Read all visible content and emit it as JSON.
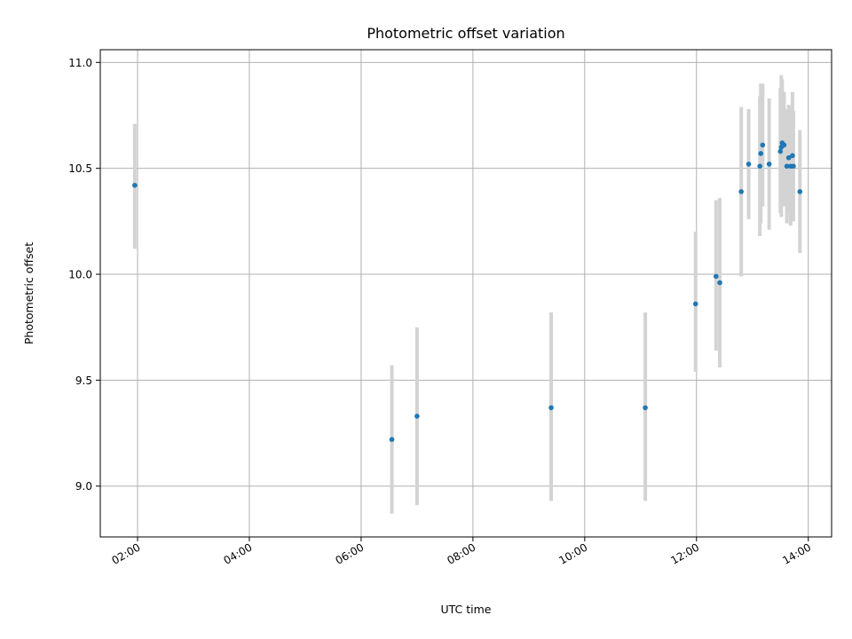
{
  "chart_data": {
    "type": "scatter",
    "title": "Photometric offset variation",
    "xlabel": "UTC time",
    "ylabel": "Photometric offset",
    "x_axis": "time",
    "xlim": [
      "01:20",
      "14:25"
    ],
    "ylim": [
      8.76,
      11.06
    ],
    "xticks": [
      "02:00",
      "04:00",
      "06:00",
      "08:00",
      "10:00",
      "12:00",
      "14:00"
    ],
    "yticks": [
      9.0,
      9.5,
      10.0,
      10.5,
      11.0
    ],
    "yticks_labels": [
      "9.0",
      "9.5",
      "10.0",
      "10.5",
      "11.0"
    ],
    "grid": true,
    "colors": {
      "points": "#1f77b4",
      "error_bars": "#d3d3d3",
      "grid": "#b0b0b0"
    },
    "points": [
      {
        "x": "01:57",
        "y": 10.42,
        "lo": 10.12,
        "hi": 10.71
      },
      {
        "x": "06:33",
        "y": 9.22,
        "lo": 8.87,
        "hi": 9.57
      },
      {
        "x": "07:00",
        "y": 9.33,
        "lo": 8.91,
        "hi": 9.75
      },
      {
        "x": "09:24",
        "y": 9.37,
        "lo": 8.93,
        "hi": 9.82
      },
      {
        "x": "11:05",
        "y": 9.37,
        "lo": 8.93,
        "hi": 9.82
      },
      {
        "x": "11:59",
        "y": 9.86,
        "lo": 9.54,
        "hi": 10.2
      },
      {
        "x": "12:21",
        "y": 9.99,
        "lo": 9.64,
        "hi": 10.35
      },
      {
        "x": "12:25",
        "y": 9.96,
        "lo": 9.56,
        "hi": 10.36
      },
      {
        "x": "12:48",
        "y": 10.39,
        "lo": 9.99,
        "hi": 10.79
      },
      {
        "x": "12:56",
        "y": 10.52,
        "lo": 10.26,
        "hi": 10.78
      },
      {
        "x": "13:08",
        "y": 10.51,
        "lo": 10.18,
        "hi": 10.84
      },
      {
        "x": "13:09",
        "y": 10.57,
        "lo": 10.24,
        "hi": 10.9
      },
      {
        "x": "13:11",
        "y": 10.61,
        "lo": 10.32,
        "hi": 10.9
      },
      {
        "x": "13:18",
        "y": 10.52,
        "lo": 10.21,
        "hi": 10.83
      },
      {
        "x": "13:30",
        "y": 10.58,
        "lo": 10.29,
        "hi": 10.88
      },
      {
        "x": "13:31",
        "y": 10.6,
        "lo": 10.27,
        "hi": 10.94
      },
      {
        "x": "13:32",
        "y": 10.62,
        "lo": 10.33,
        "hi": 10.92
      },
      {
        "x": "13:34",
        "y": 10.61,
        "lo": 10.32,
        "hi": 10.86
      },
      {
        "x": "13:37",
        "y": 10.51,
        "lo": 10.24,
        "hi": 10.78
      },
      {
        "x": "13:39",
        "y": 10.55,
        "lo": 10.29,
        "hi": 10.8
      },
      {
        "x": "13:41",
        "y": 10.51,
        "lo": 10.23,
        "hi": 10.79
      },
      {
        "x": "13:43",
        "y": 10.56,
        "lo": 10.26,
        "hi": 10.86
      },
      {
        "x": "13:44",
        "y": 10.51,
        "lo": 10.25,
        "hi": 10.77
      },
      {
        "x": "13:51",
        "y": 10.39,
        "lo": 10.1,
        "hi": 10.68
      }
    ]
  }
}
